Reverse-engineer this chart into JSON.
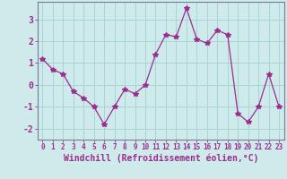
{
  "x": [
    0,
    1,
    2,
    3,
    4,
    5,
    6,
    7,
    8,
    9,
    10,
    11,
    12,
    13,
    14,
    15,
    16,
    17,
    18,
    19,
    20,
    21,
    22,
    23
  ],
  "y": [
    1.2,
    0.7,
    0.5,
    -0.3,
    -0.6,
    -1.0,
    -1.8,
    -1.0,
    -0.2,
    -0.4,
    0.0,
    1.4,
    2.3,
    2.2,
    3.5,
    2.1,
    1.9,
    2.5,
    2.3,
    -1.3,
    -1.7,
    -1.0,
    0.5,
    -1.0
  ],
  "line_color": "#9b2d8e",
  "marker": "*",
  "markersize": 4,
  "xlabel": "Windchill (Refroidissement éolien,°C)",
  "xlabel_fontsize": 7,
  "bg_color": "#ceeaea",
  "grid_color": "#a8d4d4",
  "tick_color": "#9b2d8e",
  "axis_color": "#7a7a9a",
  "ylim": [
    -2.5,
    3.8
  ],
  "xlim": [
    -0.5,
    23.5
  ],
  "yticks": [
    -2,
    -1,
    0,
    1,
    2,
    3
  ],
  "xticks": [
    0,
    1,
    2,
    3,
    4,
    5,
    6,
    7,
    8,
    9,
    10,
    11,
    12,
    13,
    14,
    15,
    16,
    17,
    18,
    19,
    20,
    21,
    22,
    23
  ],
  "ytick_fontsize": 7,
  "xtick_fontsize": 5.5
}
